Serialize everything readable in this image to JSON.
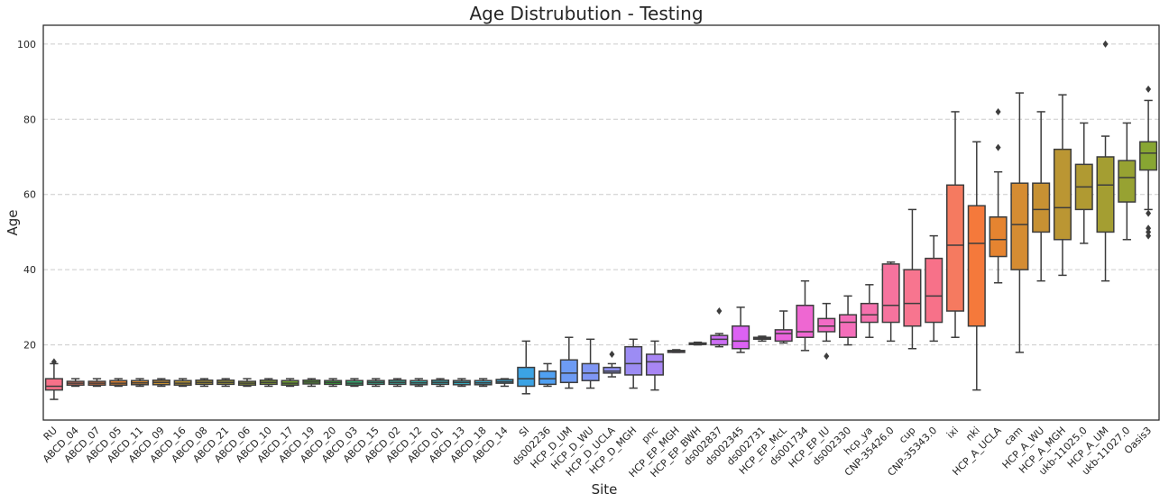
{
  "chart_data": {
    "type": "boxplot",
    "title": "Age Distrubution - Testing",
    "xlabel": "Site",
    "ylabel": "Age",
    "ylim": [
      0,
      105
    ],
    "yticks": [
      20,
      40,
      60,
      80,
      100
    ],
    "grid": "horizontal-dashed",
    "categories": [
      "RU",
      "ABCD_04",
      "ABCD_07",
      "ABCD_05",
      "ABCD_11",
      "ABCD_09",
      "ABCD_16",
      "ABCD_08",
      "ABCD_21",
      "ABCD_06",
      "ABCD_10",
      "ABCD_17",
      "ABCD_19",
      "ABCD_20",
      "ABCD_03",
      "ABCD_15",
      "ABCD_02",
      "ABCD_12",
      "ABCD_01",
      "ABCD_13",
      "ABCD_18",
      "ABCD_14",
      "SI",
      "ds002236",
      "HCP_D_UM",
      "HCP_D_WU",
      "HCP_D_UCLA",
      "HCP_D_MGH",
      "pnc",
      "HCP_EP_MGH",
      "HCP_EP_BWH",
      "ds002837",
      "ds002345",
      "ds002731",
      "HCP_EP_McL",
      "ds001734",
      "HCP_EP_IU",
      "ds002330",
      "hcp_ya",
      "CNP-35426.0",
      "cup",
      "CNP-35343.0",
      "ixi",
      "nki",
      "HCP_A_UCLA",
      "cam",
      "HCP_A_WU",
      "HCP_A_MGH",
      "ukb-11025.0",
      "HCP_A_UM",
      "ukb-11027.0",
      "Oasis3"
    ],
    "boxes": [
      {
        "whislo": 5.5,
        "q1": 8.0,
        "med": 9.0,
        "q3": 11.0,
        "whishi": 15.0,
        "fliers": [
          15.5
        ]
      },
      {
        "whislo": 9.0,
        "q1": 9.3,
        "med": 9.8,
        "q3": 10.3,
        "whishi": 11.0,
        "fliers": []
      },
      {
        "whislo": 9.0,
        "q1": 9.3,
        "med": 9.8,
        "q3": 10.3,
        "whishi": 11.0,
        "fliers": []
      },
      {
        "whislo": 9.0,
        "q1": 9.3,
        "med": 9.8,
        "q3": 10.5,
        "whishi": 11.0,
        "fliers": []
      },
      {
        "whislo": 9.0,
        "q1": 9.4,
        "med": 9.9,
        "q3": 10.5,
        "whishi": 11.0,
        "fliers": []
      },
      {
        "whislo": 9.0,
        "q1": 9.4,
        "med": 10.0,
        "q3": 10.6,
        "whishi": 11.0,
        "fliers": []
      },
      {
        "whislo": 9.0,
        "q1": 9.3,
        "med": 9.8,
        "q3": 10.5,
        "whishi": 11.0,
        "fliers": []
      },
      {
        "whislo": 9.0,
        "q1": 9.5,
        "med": 10.0,
        "q3": 10.6,
        "whishi": 11.0,
        "fliers": []
      },
      {
        "whislo": 9.0,
        "q1": 9.5,
        "med": 10.0,
        "q3": 10.6,
        "whishi": 11.0,
        "fliers": []
      },
      {
        "whislo": 9.0,
        "q1": 9.3,
        "med": 9.8,
        "q3": 10.3,
        "whishi": 11.0,
        "fliers": []
      },
      {
        "whislo": 9.0,
        "q1": 9.5,
        "med": 10.0,
        "q3": 10.6,
        "whishi": 11.0,
        "fliers": []
      },
      {
        "whislo": 9.0,
        "q1": 9.3,
        "med": 9.8,
        "q3": 10.5,
        "whishi": 11.0,
        "fliers": []
      },
      {
        "whislo": 9.0,
        "q1": 9.6,
        "med": 10.1,
        "q3": 10.6,
        "whishi": 11.0,
        "fliers": []
      },
      {
        "whislo": 9.0,
        "q1": 9.5,
        "med": 10.0,
        "q3": 10.5,
        "whishi": 11.0,
        "fliers": []
      },
      {
        "whislo": 9.0,
        "q1": 9.3,
        "med": 9.8,
        "q3": 10.5,
        "whishi": 11.0,
        "fliers": []
      },
      {
        "whislo": 9.0,
        "q1": 9.5,
        "med": 10.0,
        "q3": 10.5,
        "whishi": 11.0,
        "fliers": []
      },
      {
        "whislo": 9.0,
        "q1": 9.5,
        "med": 10.0,
        "q3": 10.6,
        "whishi": 11.0,
        "fliers": []
      },
      {
        "whislo": 9.0,
        "q1": 9.4,
        "med": 9.9,
        "q3": 10.5,
        "whishi": 11.0,
        "fliers": []
      },
      {
        "whislo": 9.0,
        "q1": 9.5,
        "med": 10.0,
        "q3": 10.6,
        "whishi": 11.0,
        "fliers": []
      },
      {
        "whislo": 9.0,
        "q1": 9.4,
        "med": 10.0,
        "q3": 10.5,
        "whishi": 11.0,
        "fliers": []
      },
      {
        "whislo": 9.0,
        "q1": 9.4,
        "med": 9.9,
        "q3": 10.5,
        "whishi": 11.0,
        "fliers": []
      },
      {
        "whislo": 9.0,
        "q1": 9.8,
        "med": 10.2,
        "q3": 10.8,
        "whishi": 11.0,
        "fliers": []
      },
      {
        "whislo": 7.0,
        "q1": 9.0,
        "med": 11.0,
        "q3": 14.0,
        "whishi": 21.0,
        "fliers": []
      },
      {
        "whislo": 9.0,
        "q1": 9.5,
        "med": 11.0,
        "q3": 13.0,
        "whishi": 15.0,
        "fliers": []
      },
      {
        "whislo": 8.5,
        "q1": 10.0,
        "med": 12.5,
        "q3": 16.0,
        "whishi": 22.0,
        "fliers": []
      },
      {
        "whislo": 8.5,
        "q1": 10.5,
        "med": 12.5,
        "q3": 15.0,
        "whishi": 21.5,
        "fliers": []
      },
      {
        "whislo": 11.5,
        "q1": 12.5,
        "med": 13.0,
        "q3": 14.0,
        "whishi": 15.0,
        "fliers": [
          17.5
        ]
      },
      {
        "whislo": 8.5,
        "q1": 12.0,
        "med": 15.0,
        "q3": 19.5,
        "whishi": 21.5,
        "fliers": []
      },
      {
        "whislo": 8.0,
        "q1": 12.0,
        "med": 15.5,
        "q3": 17.5,
        "whishi": 21.0,
        "fliers": []
      },
      {
        "whislo": 18.0,
        "q1": 18.0,
        "med": 18.3,
        "q3": 18.5,
        "whishi": 18.7,
        "fliers": []
      },
      {
        "whislo": 20.0,
        "q1": 20.1,
        "med": 20.3,
        "q3": 20.5,
        "whishi": 20.7,
        "fliers": []
      },
      {
        "whislo": 19.5,
        "q1": 20.0,
        "med": 21.5,
        "q3": 22.5,
        "whishi": 23.0,
        "fliers": [
          29.0
        ]
      },
      {
        "whislo": 18.0,
        "q1": 19.0,
        "med": 21.0,
        "q3": 25.0,
        "whishi": 30.0,
        "fliers": []
      },
      {
        "whislo": 21.0,
        "q1": 21.5,
        "med": 21.8,
        "q3": 22.0,
        "whishi": 22.3,
        "fliers": []
      },
      {
        "whislo": 20.5,
        "q1": 21.0,
        "med": 23.0,
        "q3": 24.0,
        "whishi": 29.0,
        "fliers": []
      },
      {
        "whislo": 18.5,
        "q1": 22.0,
        "med": 23.5,
        "q3": 30.5,
        "whishi": 37.0,
        "fliers": []
      },
      {
        "whislo": 21.0,
        "q1": 23.5,
        "med": 25.0,
        "q3": 27.0,
        "whishi": 31.0,
        "fliers": [
          17.0
        ]
      },
      {
        "whislo": 20.0,
        "q1": 22.0,
        "med": 26.0,
        "q3": 28.0,
        "whishi": 33.0,
        "fliers": []
      },
      {
        "whislo": 22.0,
        "q1": 26.0,
        "med": 28.0,
        "q3": 31.0,
        "whishi": 36.0,
        "fliers": []
      },
      {
        "whislo": 21.0,
        "q1": 26.0,
        "med": 30.5,
        "q3": 41.5,
        "whishi": 42.0,
        "fliers": []
      },
      {
        "whislo": 19.0,
        "q1": 25.0,
        "med": 31.0,
        "q3": 40.0,
        "whishi": 56.0,
        "fliers": []
      },
      {
        "whislo": 21.0,
        "q1": 26.0,
        "med": 33.0,
        "q3": 43.0,
        "whishi": 49.0,
        "fliers": []
      },
      {
        "whislo": 22.0,
        "q1": 29.0,
        "med": 46.5,
        "q3": 62.5,
        "whishi": 82.0,
        "fliers": []
      },
      {
        "whislo": 8.0,
        "q1": 25.0,
        "med": 47.0,
        "q3": 57.0,
        "whishi": 74.0,
        "fliers": []
      },
      {
        "whislo": 36.5,
        "q1": 43.5,
        "med": 48.0,
        "q3": 54.0,
        "whishi": 66.0,
        "fliers": [
          72.5,
          82.0
        ]
      },
      {
        "whislo": 18.0,
        "q1": 40.0,
        "med": 52.0,
        "q3": 63.0,
        "whishi": 87.0,
        "fliers": []
      },
      {
        "whislo": 37.0,
        "q1": 50.0,
        "med": 56.0,
        "q3": 63.0,
        "whishi": 82.0,
        "fliers": []
      },
      {
        "whislo": 38.5,
        "q1": 48.0,
        "med": 56.5,
        "q3": 72.0,
        "whishi": 86.5,
        "fliers": []
      },
      {
        "whislo": 47.0,
        "q1": 56.0,
        "med": 62.0,
        "q3": 68.0,
        "whishi": 79.0,
        "fliers": []
      },
      {
        "whislo": 37.0,
        "q1": 50.0,
        "med": 62.5,
        "q3": 70.0,
        "whishi": 75.5,
        "fliers": [
          100.0
        ]
      },
      {
        "whislo": 48.0,
        "q1": 58.0,
        "med": 64.5,
        "q3": 69.0,
        "whishi": 79.0,
        "fliers": []
      },
      {
        "whislo": 56.0,
        "q1": 66.5,
        "med": 71.0,
        "q3": 74.0,
        "whishi": 85.0,
        "fliers": [
          88.0,
          55.0,
          51.0,
          50.0,
          49.0
        ]
      }
    ],
    "colors": [
      "#f77189",
      "#f57a60",
      "#f5793b",
      "#e58430",
      "#d58c32",
      "#c79133",
      "#bb9633",
      "#b09a32",
      "#a49e32",
      "#97a232",
      "#88a632",
      "#76aa32",
      "#5cae32",
      "#34b335",
      "#33b071",
      "#34ae8c",
      "#35ac9b",
      "#36aba7",
      "#37aab1",
      "#38a9bb",
      "#39a7c7",
      "#3aa5d4",
      "#3ba3e4",
      "#50a0f2",
      "#6d9bf4",
      "#7f96f4",
      "#8f91f4",
      "#9c8cf4",
      "#a886f4",
      "#b480f4",
      "#c079f4",
      "#cd6ef4",
      "#dc62f3",
      "#e560e8",
      "#ea63dd",
      "#ee67d2",
      "#f26bc6",
      "#f46eba",
      "#f571ad",
      "#f6739e",
      "#f7758f",
      "#f77189",
      "#f57a60",
      "#f5793b",
      "#e58430",
      "#d58c32",
      "#c79133",
      "#bb9633",
      "#b09a32",
      "#a49e32",
      "#97a232",
      "#88a632"
    ]
  }
}
